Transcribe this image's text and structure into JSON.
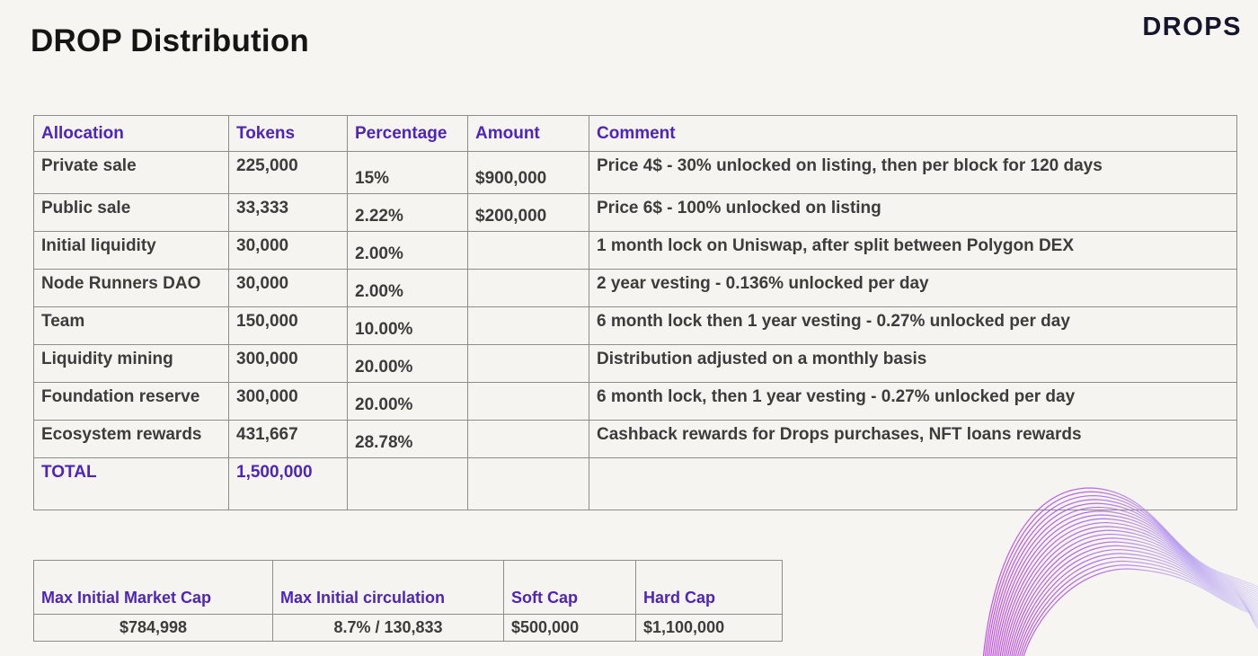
{
  "page": {
    "title": "DROP Distribution",
    "logo": "DROPS"
  },
  "colors": {
    "accent_purple": "#4e25bb",
    "text_dark": "#3d3c3a",
    "wave_magenta": "#c243de",
    "wave_lavender": "#b9aef3",
    "background": "#f7f5f2",
    "border_gray": "#8f8d8a"
  },
  "allocation_table": {
    "headers": [
      "Allocation",
      "Tokens",
      "Percentage",
      "Amount",
      "Comment"
    ],
    "rows": [
      {
        "allocation": "Private sale",
        "tokens": "225,000",
        "percentage": "15%",
        "amount": "$900,000",
        "comment": "Price 4$ - 30% unlocked on listing, then per block for 120 days"
      },
      {
        "allocation": "Public sale",
        "tokens": "33,333",
        "percentage": "2.22%",
        "amount": "$200,000",
        "comment": "Price 6$ - 100% unlocked on listing"
      },
      {
        "allocation": "Initial liquidity",
        "tokens": "30,000",
        "percentage": "2.00%",
        "amount": "",
        "comment": "1 month lock on Uniswap, after split between Polygon DEX"
      },
      {
        "allocation": "Node Runners DAO",
        "tokens": "30,000",
        "percentage": "2.00%",
        "amount": "",
        "comment": "2 year vesting - 0.136% unlocked per day"
      },
      {
        "allocation": "Team",
        "tokens": "150,000",
        "percentage": "10.00%",
        "amount": "",
        "comment": "6 month lock then 1 year vesting - 0.27% unlocked per day"
      },
      {
        "allocation": "Liquidity mining",
        "tokens": "300,000",
        "percentage": "20.00%",
        "amount": "",
        "comment": "Distribution adjusted on a monthly basis"
      },
      {
        "allocation": "Foundation reserve",
        "tokens": "300,000",
        "percentage": "20.00%",
        "amount": "",
        "comment": "6 month lock, then 1 year vesting - 0.27% unlocked per day"
      },
      {
        "allocation": "Ecosystem rewards",
        "tokens": "431,667",
        "percentage": "28.78%",
        "amount": "",
        "comment": "Cashback rewards for Drops purchases, NFT loans rewards"
      }
    ],
    "total": {
      "label": "TOTAL",
      "tokens": "1,500,000",
      "percentage": "",
      "amount": "",
      "comment": ""
    }
  },
  "summary_table": {
    "columns": [
      {
        "header": "Max Initial Market Cap",
        "value": "$784,998"
      },
      {
        "header": "Max Initial circulation",
        "value": "8.7% / 130,833"
      },
      {
        "header": "Soft Cap",
        "value": "$500,000"
      },
      {
        "header": "Hard Cap",
        "value": "$1,100,000"
      }
    ]
  }
}
